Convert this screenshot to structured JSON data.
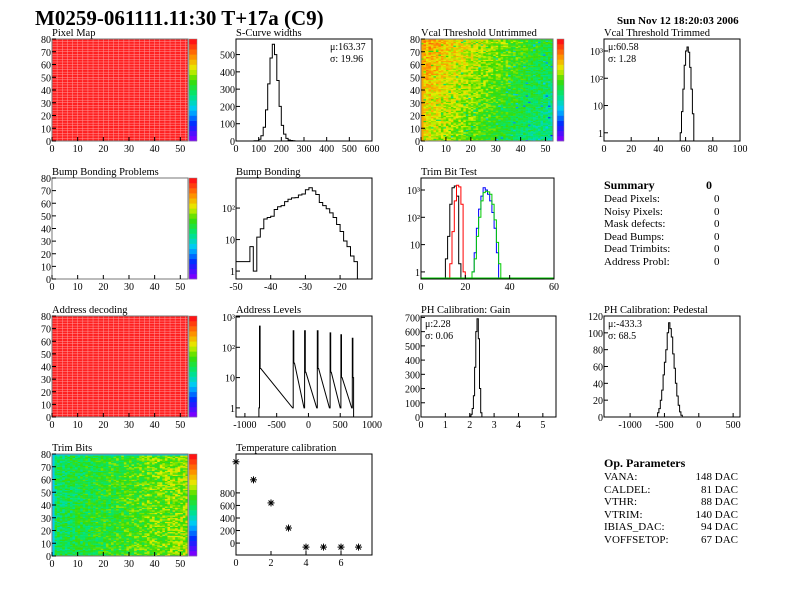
{
  "header": {
    "title": "M0259-061111.11:30 T+17a (C9)",
    "date": "Sun Nov 12 18:20:03 2006"
  },
  "summary": {
    "title": "Summary",
    "total": "0",
    "rows": [
      {
        "label": "Dead Pixels:",
        "value": "0"
      },
      {
        "label": "Noisy Pixels:",
        "value": "0"
      },
      {
        "label": "Mask defects:",
        "value": "0"
      },
      {
        "label": "Dead Bumps:",
        "value": "0"
      },
      {
        "label": "Dead Trimbits:",
        "value": "0"
      },
      {
        "label": "Address Probl:",
        "value": "0"
      }
    ]
  },
  "op_parameters": {
    "title": "Op. Parameters",
    "rows": [
      {
        "label": "VANA:",
        "value": "148 DAC"
      },
      {
        "label": "CALDEL:",
        "value": "81 DAC"
      },
      {
        "label": "VTHR:",
        "value": "88 DAC"
      },
      {
        "label": "VTRIM:",
        "value": "140 DAC"
      },
      {
        "label": "IBIAS_DAC:",
        "value": "94 DAC"
      },
      {
        "label": "VOFFSETOP:",
        "value": "67 DAC"
      }
    ]
  },
  "colors": {
    "histogram_line": "#000000",
    "trim_red": "#ff0000",
    "trim_blue": "#0000ff",
    "trim_green": "#00cc00",
    "frame": "#000000"
  },
  "chart_data": [
    {
      "type": "heatmap",
      "title": "Pixel Map",
      "xlim": [
        0,
        53
      ],
      "ylim": [
        0,
        80
      ],
      "xticks": [
        0,
        10,
        20,
        30,
        40,
        50
      ],
      "yticks": [
        0,
        10,
        20,
        30,
        40,
        50,
        60,
        70,
        80
      ],
      "zlim": [
        0,
        10
      ],
      "pattern": "uniform",
      "value": 10
    },
    {
      "type": "hist",
      "title": "S-Curve widths",
      "xlim": [
        0,
        600
      ],
      "ylim": [
        0,
        590
      ],
      "xticks": [
        0,
        100,
        200,
        300,
        400,
        500,
        600
      ],
      "yticks": [
        0,
        100,
        200,
        300,
        400,
        500
      ],
      "stats": {
        "mean": "μ:163.37",
        "sigma": "σ: 19.96",
        "position": "top-right"
      },
      "bin_width": 10,
      "series": [
        {
          "color": "#000000",
          "x": [
            80,
            90,
            100,
            110,
            120,
            130,
            140,
            150,
            160,
            170,
            180,
            190,
            200,
            210,
            220,
            230,
            240,
            250
          ],
          "values": [
            1,
            2,
            10,
            30,
            80,
            180,
            330,
            480,
            560,
            500,
            350,
            200,
            90,
            40,
            15,
            6,
            3,
            1
          ]
        }
      ]
    },
    {
      "type": "heatmap",
      "title": "Vcal Threshold Untrimmed",
      "xlim": [
        0,
        53
      ],
      "ylim": [
        0,
        80
      ],
      "xticks": [
        0,
        10,
        20,
        30,
        40,
        50
      ],
      "yticks": [
        0,
        10,
        20,
        30,
        40,
        50,
        60,
        70,
        80
      ],
      "zlim": [
        90,
        130
      ],
      "pattern": "gradient-left-high"
    },
    {
      "type": "hist",
      "title": "Vcal Threshold Trimmed",
      "log_y": true,
      "xlim": [
        0,
        100
      ],
      "ylim": [
        0.5,
        2750
      ],
      "xticks": [
        0,
        20,
        40,
        60,
        80,
        100
      ],
      "yticks": [
        1,
        10,
        100,
        1000
      ],
      "ytick_labels": [
        "1",
        "10",
        "10²",
        "10³"
      ],
      "stats": {
        "mean": "μ:60.58",
        "sigma": "σ: 1.28",
        "position": "top-left"
      },
      "bin_width": 1,
      "series": [
        {
          "color": "#000000",
          "x": [
            56,
            57,
            58,
            59,
            60,
            61,
            62,
            63,
            64,
            65
          ],
          "values": [
            1,
            6,
            40,
            300,
            1000,
            1400,
            900,
            250,
            40,
            5
          ]
        }
      ]
    },
    {
      "type": "heatmap",
      "title": "Bump Bonding Problems",
      "xlim": [
        0,
        53
      ],
      "ylim": [
        0,
        80
      ],
      "xticks": [
        0,
        10,
        20,
        30,
        40,
        50
      ],
      "yticks": [
        0,
        10,
        20,
        30,
        40,
        50,
        60,
        70,
        80
      ],
      "zlim": [
        0,
        1
      ],
      "pattern": "empty"
    },
    {
      "type": "hist",
      "title": "Bump Bonding",
      "log_y": true,
      "xlim": [
        -50,
        -10.8
      ],
      "ylim": [
        0.56,
        900
      ],
      "xticks": [
        -50,
        -40,
        -30,
        -20
      ],
      "yticks": [
        1,
        10,
        100
      ],
      "ytick_labels": [
        "1",
        "10",
        "10²"
      ],
      "bin_width": 1,
      "series": [
        {
          "color": "#000000",
          "x": [
            -50,
            -49,
            -48,
            -47,
            -46,
            -45,
            -44,
            -43,
            -42,
            -41,
            -40,
            -39,
            -38,
            -37,
            -36,
            -35,
            -34,
            -33,
            -32,
            -31,
            -30,
            -29,
            -28,
            -27,
            -26,
            -25,
            -24,
            -23,
            -22,
            -21,
            -20,
            -19,
            -18,
            -17,
            -16
          ],
          "values": [
            2,
            2,
            2,
            2,
            6,
            1,
            12,
            22,
            45,
            50,
            55,
            90,
            110,
            120,
            160,
            190,
            210,
            215,
            260,
            280,
            380,
            440,
            350,
            270,
            150,
            120,
            95,
            70,
            50,
            30,
            18,
            9,
            6,
            3,
            2
          ]
        }
      ]
    },
    {
      "type": "hist",
      "title": "Trim Bit Test",
      "log_y": true,
      "xlim": [
        0,
        60
      ],
      "ylim": [
        0.55,
        2750
      ],
      "xticks": [
        0,
        20,
        40,
        60
      ],
      "yticks": [
        1,
        10,
        100,
        1000
      ],
      "ytick_labels": [
        "1",
        "10",
        "10²",
        "10³"
      ],
      "bin_width": 1,
      "series": [
        {
          "color": "#000000",
          "x": [
            11,
            12,
            13,
            14,
            15,
            16,
            17
          ],
          "values": [
            3,
            20,
            300,
            1200,
            1400,
            600,
            2
          ]
        },
        {
          "color": "#ff0000",
          "x": [
            13,
            14,
            15,
            16,
            17,
            18,
            19
          ],
          "values": [
            2,
            30,
            400,
            1500,
            1300,
            300,
            1
          ]
        },
        {
          "color": "#0000ff",
          "x": [
            23,
            24,
            25,
            26,
            27,
            28,
            29,
            30,
            31,
            32,
            33,
            34
          ],
          "values": [
            1,
            5,
            40,
            200,
            600,
            1200,
            1000,
            700,
            400,
            150,
            40,
            5
          ]
        },
        {
          "color": "#00cc00",
          "x": [
            23,
            24,
            25,
            26,
            27,
            28,
            29,
            30,
            31,
            32,
            33,
            34,
            35
          ],
          "values": [
            1,
            3,
            20,
            100,
            400,
            800,
            900,
            850,
            700,
            300,
            80,
            12,
            2
          ]
        }
      ]
    },
    {
      "type": "heatmap",
      "title": "Address decoding",
      "xlim": [
        0,
        53
      ],
      "ylim": [
        0,
        80
      ],
      "xticks": [
        0,
        10,
        20,
        30,
        40,
        50
      ],
      "yticks": [
        0,
        10,
        20,
        30,
        40,
        50,
        60,
        70,
        80
      ],
      "zlim": [
        0,
        1
      ],
      "pattern": "uniform",
      "value": 1
    },
    {
      "type": "hist",
      "title": "Address Levels",
      "log_y": true,
      "xlim": [
        -1140,
        1000
      ],
      "ylim": [
        0.5,
        1080
      ],
      "xticks": [
        -1000,
        -500,
        0,
        500,
        1000
      ],
      "yticks": [
        1,
        10,
        100,
        1000
      ],
      "ytick_labels": [
        "1",
        "10",
        "10²",
        "10³"
      ],
      "bin_width": 10,
      "series": [
        {
          "color": "#000000",
          "x": [
            -780,
            -770,
            -760,
            -250,
            -240,
            -230,
            -70,
            -60,
            -50,
            130,
            140,
            150,
            330,
            340,
            350,
            500,
            510,
            520,
            680,
            690,
            700
          ],
          "values": [
            1,
            500,
            20,
            1,
            350,
            30,
            1,
            350,
            15,
            1,
            350,
            20,
            1,
            300,
            15,
            1,
            260,
            10,
            1,
            200,
            10
          ]
        }
      ]
    },
    {
      "type": "hist",
      "title": "PH Calibration: Gain",
      "xlim": [
        0,
        5.54
      ],
      "ylim": [
        0,
        710
      ],
      "xticks": [
        0,
        1,
        2,
        3,
        4,
        5
      ],
      "yticks": [
        0,
        100,
        200,
        300,
        400,
        500,
        600,
        700
      ],
      "stats": {
        "mean": "μ:2.28",
        "sigma": "σ: 0.06",
        "position": "top-left"
      },
      "bin_width": 0.05,
      "series": [
        {
          "color": "#000000",
          "x": [
            2.0,
            2.05,
            2.1,
            2.15,
            2.2,
            2.25,
            2.3,
            2.35,
            2.4,
            2.45
          ],
          "values": [
            5,
            20,
            60,
            150,
            350,
            600,
            690,
            550,
            200,
            30
          ]
        }
      ]
    },
    {
      "type": "hist",
      "title": "PH Calibration: Pedestal",
      "xlim": [
        -1380,
        600
      ],
      "ylim": [
        0,
        120
      ],
      "xticks": [
        -1000,
        -500,
        0,
        500
      ],
      "yticks": [
        0,
        20,
        40,
        60,
        80,
        100,
        120
      ],
      "stats": {
        "mean": "μ:-433.3",
        "sigma": "σ: 68.5",
        "position": "top-left"
      },
      "bin_width": 20,
      "series": [
        {
          "color": "#000000",
          "x": [
            -600,
            -580,
            -560,
            -540,
            -520,
            -500,
            -480,
            -460,
            -440,
            -420,
            -400,
            -380,
            -360,
            -340,
            -320,
            -300,
            -280,
            -260
          ],
          "values": [
            5,
            10,
            20,
            32,
            50,
            65,
            80,
            100,
            112,
            105,
            95,
            75,
            58,
            40,
            25,
            14,
            6,
            2
          ]
        }
      ]
    },
    {
      "type": "heatmap",
      "title": "Trim Bits",
      "xlim": [
        0,
        53
      ],
      "ylim": [
        0,
        80
      ],
      "xticks": [
        0,
        10,
        20,
        30,
        40,
        50
      ],
      "yticks": [
        0,
        10,
        20,
        30,
        40,
        50,
        60,
        70,
        80
      ],
      "zlim": [
        0,
        16
      ],
      "pattern": "gradient-right-high"
    },
    {
      "type": "scatter",
      "title": "Temperature calibration",
      "xlim": [
        0,
        7.77
      ],
      "ylim": [
        -190,
        1420
      ],
      "xticks": [
        0,
        2,
        4,
        6
      ],
      "yticks": [
        0,
        200,
        400,
        600,
        800
      ],
      "marker": "star",
      "x": [
        0,
        1,
        2,
        3,
        4,
        5,
        6,
        7
      ],
      "y": [
        1296,
        1008,
        640,
        240,
        -64,
        -64,
        -64,
        -64
      ]
    }
  ]
}
